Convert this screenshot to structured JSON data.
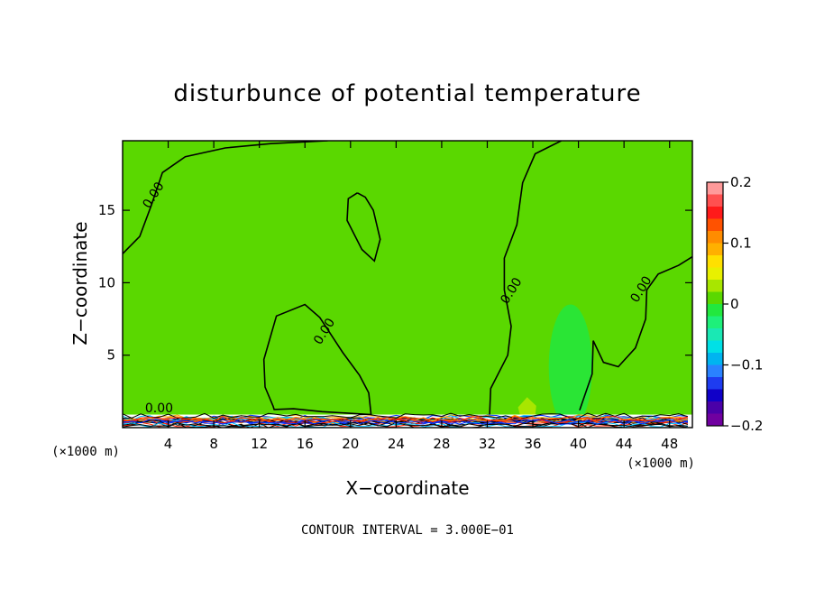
{
  "chart_data": {
    "type": "heatmap",
    "title": "disturbunce of potential temperature",
    "xlabel": "X−coordinate",
    "ylabel": "Z−coordinate",
    "x_unit_left": "(×1000 m)",
    "x_unit_right": "(×1000 m)",
    "xlim": [
      0,
      50
    ],
    "ylim": [
      0,
      19.8
    ],
    "x_ticks": [
      4,
      8,
      12,
      16,
      20,
      24,
      28,
      32,
      36,
      40,
      44,
      48
    ],
    "y_ticks": [
      5,
      10,
      15
    ],
    "grid": false,
    "colorbar": {
      "range": [
        -0.2,
        0.2
      ],
      "tick_values": [
        0.2,
        0.1,
        0,
        -0.1,
        -0.2
      ],
      "tick_labels": [
        "0.2",
        "0.1",
        "0",
        "−0.1",
        "−0.2"
      ],
      "colors": [
        "#ff9a9a",
        "#ff5050",
        "#ff1a1a",
        "#ff5200",
        "#ff8c00",
        "#ffb000",
        "#ffe000",
        "#e8f000",
        "#a8e600",
        "#5ad800",
        "#22e83e",
        "#1ef07a",
        "#1ae8b4",
        "#00e0e6",
        "#00b4f0",
        "#2a82ff",
        "#1e3cf0",
        "#1000c8",
        "#4a00a8",
        "#7000a0"
      ]
    },
    "background_value": 0.0,
    "contour_label": "0.00",
    "contour_interval_text": "CONTOUR INTERVAL = 3.000E−01",
    "features": [
      {
        "name": "upper-left zero contour",
        "points": [
          [
            0,
            12
          ],
          [
            1.5,
            13.2
          ],
          [
            2.5,
            15.3
          ],
          [
            3.5,
            17.6
          ],
          [
            5.5,
            18.7
          ],
          [
            9,
            19.3
          ],
          [
            13,
            19.6
          ],
          [
            18,
            19.8
          ]
        ],
        "labels": [
          [
            3,
            15.9
          ]
        ]
      },
      {
        "name": "upper isolated closed contour",
        "points": [
          [
            20.6,
            16.2
          ],
          [
            21.3,
            15.9
          ],
          [
            22,
            15
          ],
          [
            22.6,
            13
          ],
          [
            22.1,
            11.5
          ],
          [
            21,
            12.3
          ],
          [
            19.7,
            14.3
          ],
          [
            19.8,
            15.8
          ],
          [
            20.6,
            16.2
          ]
        ]
      },
      {
        "name": "lower-left closed contour",
        "points": [
          [
            13.2,
            1.5
          ],
          [
            12.5,
            2.8
          ],
          [
            12.4,
            4.7
          ],
          [
            13.5,
            7.7
          ],
          [
            16,
            8.5
          ],
          [
            17.3,
            7.6
          ],
          [
            19.3,
            5.2
          ],
          [
            20.8,
            3.6
          ],
          [
            21.6,
            2.4
          ],
          [
            21.8,
            0.9
          ],
          [
            17.5,
            1.1
          ],
          [
            15,
            1.3
          ],
          [
            13.3,
            1.25
          ],
          [
            13.2,
            1.5
          ]
        ],
        "labels": [
          [
            18,
            6.5
          ]
        ]
      },
      {
        "name": "central-right zero contour",
        "points": [
          [
            32.2,
            0.8
          ],
          [
            32.3,
            2.7
          ],
          [
            33.8,
            5
          ],
          [
            34.1,
            7
          ],
          [
            33.5,
            9.5
          ],
          [
            33.5,
            11.7
          ],
          [
            34.6,
            14
          ],
          [
            35.1,
            16.9
          ],
          [
            36.2,
            18.9
          ],
          [
            38.5,
            19.8
          ]
        ],
        "labels": [
          [
            34.4,
            9.3
          ]
        ]
      },
      {
        "name": "right zero contour",
        "points": [
          [
            40.1,
            1.2
          ],
          [
            41.2,
            3.7
          ],
          [
            41.3,
            6
          ],
          [
            42.2,
            4.5
          ],
          [
            43.5,
            4.2
          ],
          [
            45,
            5.5
          ],
          [
            45.9,
            7.5
          ],
          [
            46,
            9.5
          ],
          [
            47,
            10.6
          ],
          [
            48.8,
            11.2
          ],
          [
            50,
            11.8
          ]
        ],
        "labels": [
          [
            45.8,
            9.4
          ]
        ]
      },
      {
        "name": "negative plume",
        "shape": "ellipse",
        "center": [
          39.3,
          4.2
        ],
        "radii": [
          1.9,
          4.3
        ],
        "value": -0.015
      },
      {
        "name": "small positive bump",
        "points": [
          [
            34.9,
            0.8
          ],
          [
            34.7,
            1.4
          ],
          [
            35.5,
            2.1
          ],
          [
            36.3,
            1.5
          ],
          [
            36.2,
            0.8
          ]
        ],
        "value": 0.03
      }
    ]
  }
}
